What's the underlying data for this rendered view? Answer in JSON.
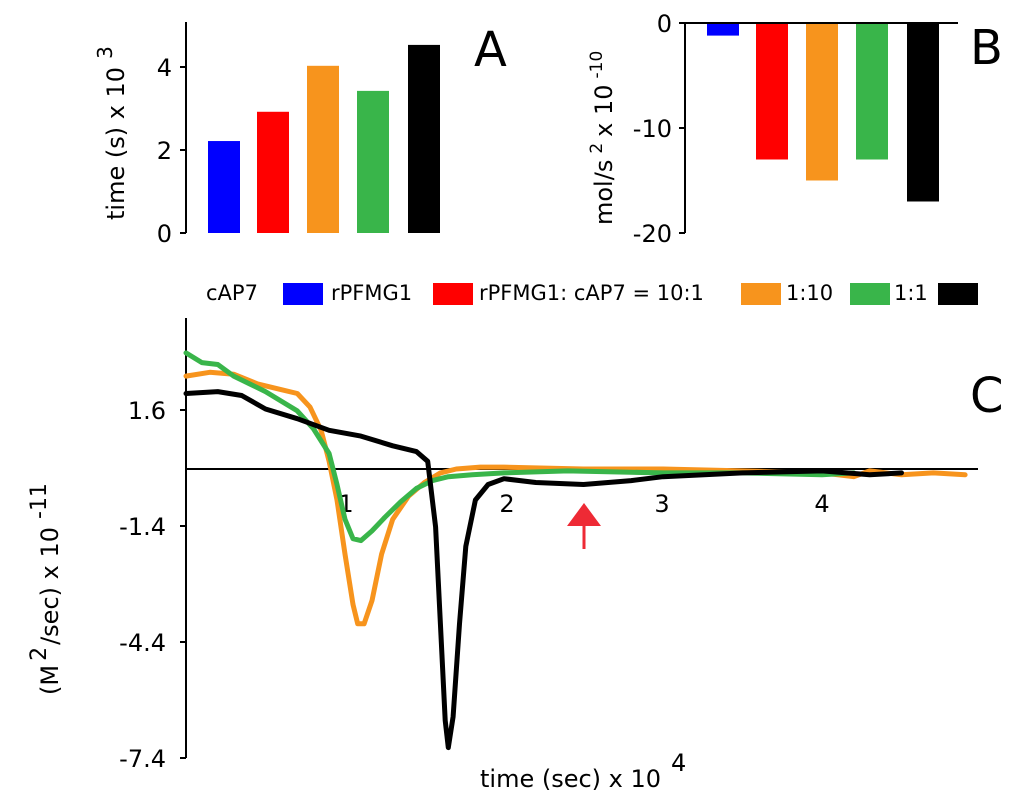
{
  "colors": {
    "cAP7": "#0000ff",
    "rPFMG1": "#ff0000",
    "r10to1": "#f7941d",
    "r1to10": "#39b54a",
    "r1to1": "#000000",
    "arrow": "#ee2a35"
  },
  "legend": {
    "item1": "cAP7",
    "item2": "rPFMG1",
    "item3": "rPFMG1: cAP7 = 10:1",
    "item4": "1:10",
    "item5": "1:1"
  },
  "chart_data": [
    {
      "type": "bar",
      "panel_label": "A",
      "ylabel": "time (s) x 10",
      "ylabel_exponent": "3",
      "ylim": [
        0,
        5
      ],
      "yticks": [
        "0",
        "2",
        "4"
      ],
      "categories": [
        "cAP7",
        "rPFMG1",
        "10:1",
        "1:10",
        "1:1"
      ],
      "values": [
        2.2,
        2.9,
        4.0,
        3.4,
        4.5
      ]
    },
    {
      "type": "bar",
      "panel_label": "B",
      "ylabel": "mol/s",
      "ylabel_exponent1": "2",
      "ylabel_mid": "x 10",
      "ylabel_exponent2": "-10",
      "ylim": [
        -20,
        0
      ],
      "yticks": [
        "0",
        "-10",
        "-20"
      ],
      "categories": [
        "cAP7",
        "rPFMG1",
        "10:1",
        "1:10",
        "1:1"
      ],
      "values": [
        -1.2,
        -13,
        -15,
        -13,
        -17
      ]
    },
    {
      "type": "line",
      "panel_label": "C",
      "ylabel": "(M",
      "ylabel_exponent1": "2",
      "ylabel_mid": "/sec) x 10",
      "ylabel_exponent2": "-11",
      "xlabel": "time (sec) x 10",
      "xlabel_exponent": "4",
      "ylim": [
        -7.4,
        3.0
      ],
      "xlim": [
        0,
        5
      ],
      "yticks": [
        "1.6",
        "-1.4",
        "-4.4",
        "-7.4"
      ],
      "xticks": [
        "1",
        "2",
        "3",
        "4"
      ],
      "arrow_x": 2.5,
      "series": [
        {
          "key": "r10to1",
          "points": [
            [
              0,
              2.4
            ],
            [
              0.15,
              2.5
            ],
            [
              0.3,
              2.45
            ],
            [
              0.45,
              2.2
            ],
            [
              0.6,
              2.05
            ],
            [
              0.7,
              1.95
            ],
            [
              0.78,
              1.6
            ],
            [
              0.85,
              1.0
            ],
            [
              0.9,
              0.2
            ],
            [
              0.95,
              -0.8
            ],
            [
              1.0,
              -2.2
            ],
            [
              1.05,
              -3.5
            ],
            [
              1.08,
              -4.0
            ],
            [
              1.12,
              -4.0
            ],
            [
              1.17,
              -3.4
            ],
            [
              1.23,
              -2.2
            ],
            [
              1.3,
              -1.3
            ],
            [
              1.4,
              -0.7
            ],
            [
              1.5,
              -0.35
            ],
            [
              1.6,
              -0.1
            ],
            [
              1.7,
              0.0
            ],
            [
              1.85,
              0.05
            ],
            [
              2.0,
              0.05
            ],
            [
              2.5,
              0.0
            ],
            [
              3.0,
              0.0
            ],
            [
              3.5,
              -0.05
            ],
            [
              4.0,
              -0.1
            ],
            [
              4.2,
              -0.2
            ],
            [
              4.3,
              -0.05
            ],
            [
              4.5,
              -0.15
            ],
            [
              4.7,
              -0.1
            ],
            [
              4.9,
              -0.15
            ]
          ]
        },
        {
          "key": "r1to10",
          "points": [
            [
              0,
              3.0
            ],
            [
              0.1,
              2.75
            ],
            [
              0.2,
              2.7
            ],
            [
              0.3,
              2.4
            ],
            [
              0.4,
              2.2
            ],
            [
              0.5,
              2.0
            ],
            [
              0.6,
              1.75
            ],
            [
              0.7,
              1.5
            ],
            [
              0.8,
              1.05
            ],
            [
              0.9,
              0.4
            ],
            [
              0.95,
              -0.4
            ],
            [
              1.0,
              -1.3
            ],
            [
              1.05,
              -1.8
            ],
            [
              1.1,
              -1.85
            ],
            [
              1.17,
              -1.6
            ],
            [
              1.25,
              -1.25
            ],
            [
              1.35,
              -0.85
            ],
            [
              1.45,
              -0.5
            ],
            [
              1.55,
              -0.3
            ],
            [
              1.65,
              -0.2
            ],
            [
              1.8,
              -0.15
            ],
            [
              2.0,
              -0.1
            ],
            [
              2.4,
              -0.05
            ],
            [
              3.0,
              -0.1
            ],
            [
              3.5,
              -0.1
            ],
            [
              4.0,
              -0.15
            ],
            [
              4.2,
              -0.1
            ]
          ]
        },
        {
          "key": "r1to1",
          "points": [
            [
              0,
              1.95
            ],
            [
              0.2,
              2.0
            ],
            [
              0.35,
              1.9
            ],
            [
              0.5,
              1.55
            ],
            [
              0.7,
              1.3
            ],
            [
              0.9,
              1.0
            ],
            [
              1.1,
              0.85
            ],
            [
              1.3,
              0.6
            ],
            [
              1.45,
              0.45
            ],
            [
              1.52,
              0.2
            ],
            [
              1.57,
              -1.5
            ],
            [
              1.6,
              -4.0
            ],
            [
              1.63,
              -6.5
            ],
            [
              1.65,
              -7.2
            ],
            [
              1.68,
              -6.4
            ],
            [
              1.72,
              -4.0
            ],
            [
              1.76,
              -2.0
            ],
            [
              1.82,
              -0.8
            ],
            [
              1.9,
              -0.4
            ],
            [
              2.0,
              -0.25
            ],
            [
              2.2,
              -0.35
            ],
            [
              2.5,
              -0.4
            ],
            [
              2.8,
              -0.3
            ],
            [
              3.0,
              -0.2
            ],
            [
              3.5,
              -0.1
            ],
            [
              4.0,
              -0.05
            ],
            [
              4.3,
              -0.15
            ],
            [
              4.5,
              -0.1
            ]
          ]
        }
      ]
    }
  ]
}
